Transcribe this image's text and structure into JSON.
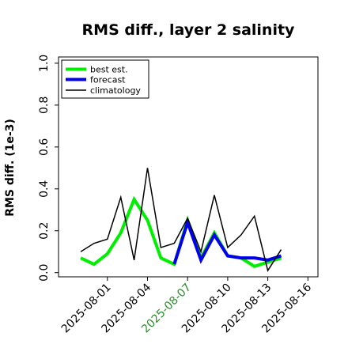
{
  "chart_data": {
    "type": "line",
    "title": "RMS diff., layer 2 salinity",
    "xlabel": "",
    "ylabel": "RMS diff. (1e-3)",
    "ylim": [
      -0.02,
      1.03
    ],
    "yticks": [
      "0.0",
      "0.2",
      "0.4",
      "0.6",
      "0.8",
      "1.0"
    ],
    "x": [
      "2025-07-30",
      "2025-07-31",
      "2025-08-01",
      "2025-08-02",
      "2025-08-03",
      "2025-08-04",
      "2025-08-05",
      "2025-08-06",
      "2025-08-07",
      "2025-08-08",
      "2025-08-09",
      "2025-08-10",
      "2025-08-11",
      "2025-08-12",
      "2025-08-13",
      "2025-08-14",
      "2025-08-15"
    ],
    "xticks": [
      {
        "label": "2025-08-01",
        "color": "#000000"
      },
      {
        "label": "2025-08-04",
        "color": "#000000"
      },
      {
        "label": "2025-08-07",
        "color": "#2e8b2e"
      },
      {
        "label": "2025-08-10",
        "color": "#000000"
      },
      {
        "label": "2025-08-13",
        "color": "#000000"
      },
      {
        "label": "2025-08-16",
        "color": "#000000"
      }
    ],
    "legend": "top-left",
    "series": [
      {
        "name": "best est.",
        "color": "#00ee00",
        "values": [
          0.07,
          0.04,
          0.09,
          0.19,
          0.35,
          0.25,
          0.07,
          0.04,
          0.25,
          0.07,
          0.19,
          0.08,
          0.07,
          0.03,
          0.05,
          0.07,
          null
        ]
      },
      {
        "name": "forecast",
        "color": "#0000ee",
        "values": [
          null,
          null,
          null,
          null,
          null,
          null,
          null,
          0.04,
          0.24,
          0.06,
          0.18,
          0.08,
          0.07,
          0.07,
          0.06,
          0.08,
          null
        ]
      },
      {
        "name": "climatology",
        "color": "#000000",
        "values": [
          0.1,
          0.14,
          0.16,
          0.36,
          0.06,
          0.5,
          0.12,
          0.14,
          0.26,
          0.1,
          0.37,
          0.12,
          0.18,
          0.27,
          0.01,
          0.11,
          null
        ]
      }
    ]
  }
}
